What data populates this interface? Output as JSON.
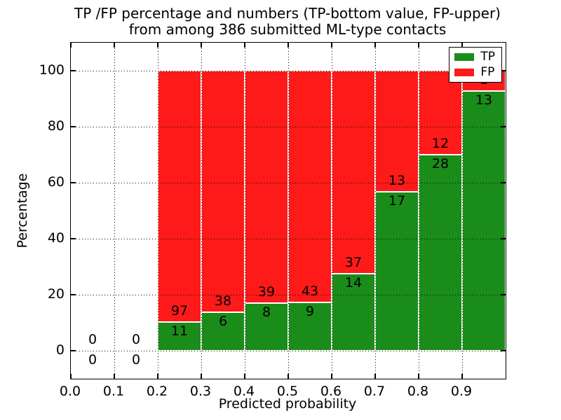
{
  "figure": {
    "title_line1": "TP /FP percentage and numbers (TP-bottom value, FP-upper)",
    "title_line2": "from among 386 submitted ML-type contacts"
  },
  "chart_data": {
    "type": "bar",
    "stacked": true,
    "title_line1": "TP /FP percentage and numbers (TP-bottom value, FP-upper)",
    "title_line2": "from among 386 submitted ML-type contacts",
    "xlabel": "Predicted probability",
    "ylabel": "Percentage",
    "xlim": [
      0.0,
      1.0
    ],
    "ylim": [
      -10,
      110
    ],
    "grid": true,
    "legend_position": "upper right",
    "total_contacts": 386,
    "colors": {
      "tp": "#1A8C1A",
      "fp": "#FF1A1A",
      "bar_edge": "#FFFFFF",
      "grid": "#000000"
    },
    "x_tick_labels": [
      "0.0",
      "0.1",
      "0.2",
      "0.3",
      "0.4",
      "0.5",
      "0.6",
      "0.7",
      "0.8",
      "0.9"
    ],
    "x_tick_values": [
      0.0,
      0.1,
      0.2,
      0.3,
      0.4,
      0.5,
      0.6,
      0.7,
      0.8,
      0.9
    ],
    "y_tick_labels": [
      "0",
      "20",
      "40",
      "60",
      "80",
      "100"
    ],
    "y_tick_values": [
      0,
      20,
      40,
      60,
      80,
      100
    ],
    "legend": [
      {
        "name": "TP",
        "color": "#1A8C1A"
      },
      {
        "name": "FP",
        "color": "#FF1A1A"
      }
    ],
    "bins": [
      {
        "x0": 0.0,
        "x1": 0.1,
        "tp": 0,
        "fp": 0,
        "tp_pct": 0,
        "fp_pct": 0,
        "has_bar": false
      },
      {
        "x0": 0.1,
        "x1": 0.2,
        "tp": 0,
        "fp": 0,
        "tp_pct": 0,
        "fp_pct": 0,
        "has_bar": false
      },
      {
        "x0": 0.2,
        "x1": 0.3,
        "tp": 11,
        "fp": 97,
        "tp_pct": 10.19,
        "fp_pct": 89.81,
        "has_bar": true
      },
      {
        "x0": 0.3,
        "x1": 0.4,
        "tp": 6,
        "fp": 38,
        "tp_pct": 13.64,
        "fp_pct": 86.36,
        "has_bar": true
      },
      {
        "x0": 0.4,
        "x1": 0.5,
        "tp": 8,
        "fp": 39,
        "tp_pct": 17.02,
        "fp_pct": 82.98,
        "has_bar": true
      },
      {
        "x0": 0.5,
        "x1": 0.6,
        "tp": 9,
        "fp": 43,
        "tp_pct": 17.31,
        "fp_pct": 82.69,
        "has_bar": true
      },
      {
        "x0": 0.6,
        "x1": 0.7,
        "tp": 14,
        "fp": 37,
        "tp_pct": 27.45,
        "fp_pct": 72.55,
        "has_bar": true
      },
      {
        "x0": 0.7,
        "x1": 0.8,
        "tp": 17,
        "fp": 13,
        "tp_pct": 56.67,
        "fp_pct": 43.33,
        "has_bar": true
      },
      {
        "x0": 0.8,
        "x1": 0.9,
        "tp": 28,
        "fp": 12,
        "tp_pct": 70.0,
        "fp_pct": 30.0,
        "has_bar": true
      },
      {
        "x0": 0.9,
        "x1": 1.0,
        "tp": 13,
        "fp": 1,
        "tp_pct": 92.86,
        "fp_pct": 7.14,
        "has_bar": true
      }
    ]
  }
}
